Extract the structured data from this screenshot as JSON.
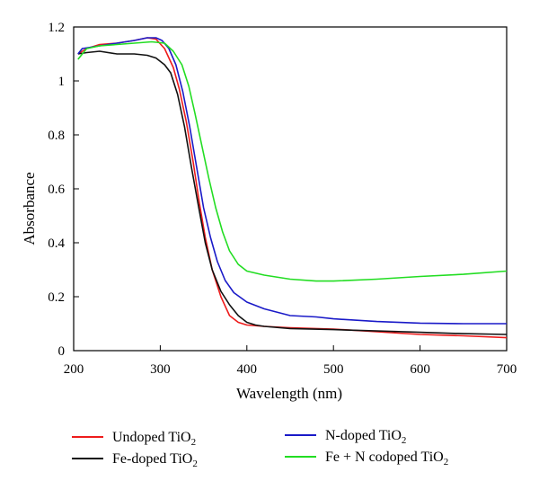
{
  "chart_data": {
    "type": "line",
    "xlabel": "Wavelength (nm)",
    "ylabel": "Absorbance",
    "xlim": [
      200,
      700
    ],
    "ylim": [
      0,
      1.2
    ],
    "xticks": [
      "200",
      "300",
      "400",
      "500",
      "600",
      "700"
    ],
    "yticks": [
      "0",
      "0.2",
      "0.4",
      "0.6",
      "0.8",
      "1",
      "1.2"
    ],
    "grid": false,
    "legend_position": "bottom",
    "series": [
      {
        "name": "Undoped TiO2",
        "label_main": "Undoped TiO",
        "label_sub": "2",
        "color": "#ee1c1c",
        "points": [
          [
            205,
            1.1
          ],
          [
            215,
            1.12
          ],
          [
            230,
            1.135
          ],
          [
            250,
            1.14
          ],
          [
            270,
            1.15
          ],
          [
            285,
            1.16
          ],
          [
            295,
            1.155
          ],
          [
            305,
            1.12
          ],
          [
            315,
            1.05
          ],
          [
            322,
            0.97
          ],
          [
            330,
            0.85
          ],
          [
            338,
            0.7
          ],
          [
            345,
            0.55
          ],
          [
            352,
            0.42
          ],
          [
            360,
            0.3
          ],
          [
            370,
            0.2
          ],
          [
            380,
            0.13
          ],
          [
            390,
            0.105
          ],
          [
            400,
            0.095
          ],
          [
            420,
            0.09
          ],
          [
            450,
            0.085
          ],
          [
            500,
            0.08
          ],
          [
            550,
            0.07
          ],
          [
            600,
            0.06
          ],
          [
            650,
            0.055
          ],
          [
            700,
            0.048
          ]
        ]
      },
      {
        "name": "Fe-doped TiO2",
        "label_main": "Fe-doped TiO",
        "label_sub": "2",
        "color": "#111111",
        "points": [
          [
            205,
            1.1
          ],
          [
            215,
            1.105
          ],
          [
            230,
            1.11
          ],
          [
            250,
            1.1
          ],
          [
            270,
            1.1
          ],
          [
            285,
            1.095
          ],
          [
            295,
            1.085
          ],
          [
            305,
            1.06
          ],
          [
            312,
            1.03
          ],
          [
            320,
            0.95
          ],
          [
            328,
            0.83
          ],
          [
            336,
            0.68
          ],
          [
            345,
            0.52
          ],
          [
            352,
            0.4
          ],
          [
            360,
            0.3
          ],
          [
            370,
            0.22
          ],
          [
            380,
            0.17
          ],
          [
            390,
            0.13
          ],
          [
            400,
            0.105
          ],
          [
            410,
            0.095
          ],
          [
            420,
            0.09
          ],
          [
            450,
            0.082
          ],
          [
            500,
            0.078
          ],
          [
            550,
            0.073
          ],
          [
            600,
            0.068
          ],
          [
            650,
            0.063
          ],
          [
            700,
            0.06
          ]
        ]
      },
      {
        "name": "N-doped TiO2",
        "label_main": "N-doped TiO",
        "label_sub": "2",
        "color": "#1a1ac8",
        "points": [
          [
            205,
            1.1
          ],
          [
            210,
            1.12
          ],
          [
            230,
            1.13
          ],
          [
            250,
            1.14
          ],
          [
            270,
            1.15
          ],
          [
            285,
            1.16
          ],
          [
            295,
            1.16
          ],
          [
            302,
            1.15
          ],
          [
            310,
            1.12
          ],
          [
            318,
            1.06
          ],
          [
            326,
            0.96
          ],
          [
            334,
            0.83
          ],
          [
            342,
            0.68
          ],
          [
            350,
            0.53
          ],
          [
            358,
            0.42
          ],
          [
            366,
            0.33
          ],
          [
            375,
            0.26
          ],
          [
            385,
            0.215
          ],
          [
            400,
            0.18
          ],
          [
            420,
            0.155
          ],
          [
            450,
            0.13
          ],
          [
            480,
            0.125
          ],
          [
            500,
            0.118
          ],
          [
            550,
            0.108
          ],
          [
            600,
            0.102
          ],
          [
            650,
            0.1
          ],
          [
            700,
            0.1
          ]
        ]
      },
      {
        "name": "Fe + N codoped TiO2",
        "label_main": "Fe + N codoped TiO",
        "label_sub": "2",
        "color": "#22dd22",
        "points": [
          [
            205,
            1.08
          ],
          [
            215,
            1.12
          ],
          [
            230,
            1.13
          ],
          [
            250,
            1.135
          ],
          [
            270,
            1.14
          ],
          [
            290,
            1.145
          ],
          [
            305,
            1.14
          ],
          [
            315,
            1.11
          ],
          [
            325,
            1.06
          ],
          [
            333,
            0.98
          ],
          [
            340,
            0.88
          ],
          [
            348,
            0.76
          ],
          [
            356,
            0.64
          ],
          [
            364,
            0.53
          ],
          [
            372,
            0.44
          ],
          [
            380,
            0.37
          ],
          [
            390,
            0.32
          ],
          [
            400,
            0.295
          ],
          [
            420,
            0.28
          ],
          [
            450,
            0.265
          ],
          [
            480,
            0.258
          ],
          [
            500,
            0.258
          ],
          [
            550,
            0.265
          ],
          [
            600,
            0.275
          ],
          [
            650,
            0.283
          ],
          [
            700,
            0.295
          ]
        ]
      }
    ]
  }
}
